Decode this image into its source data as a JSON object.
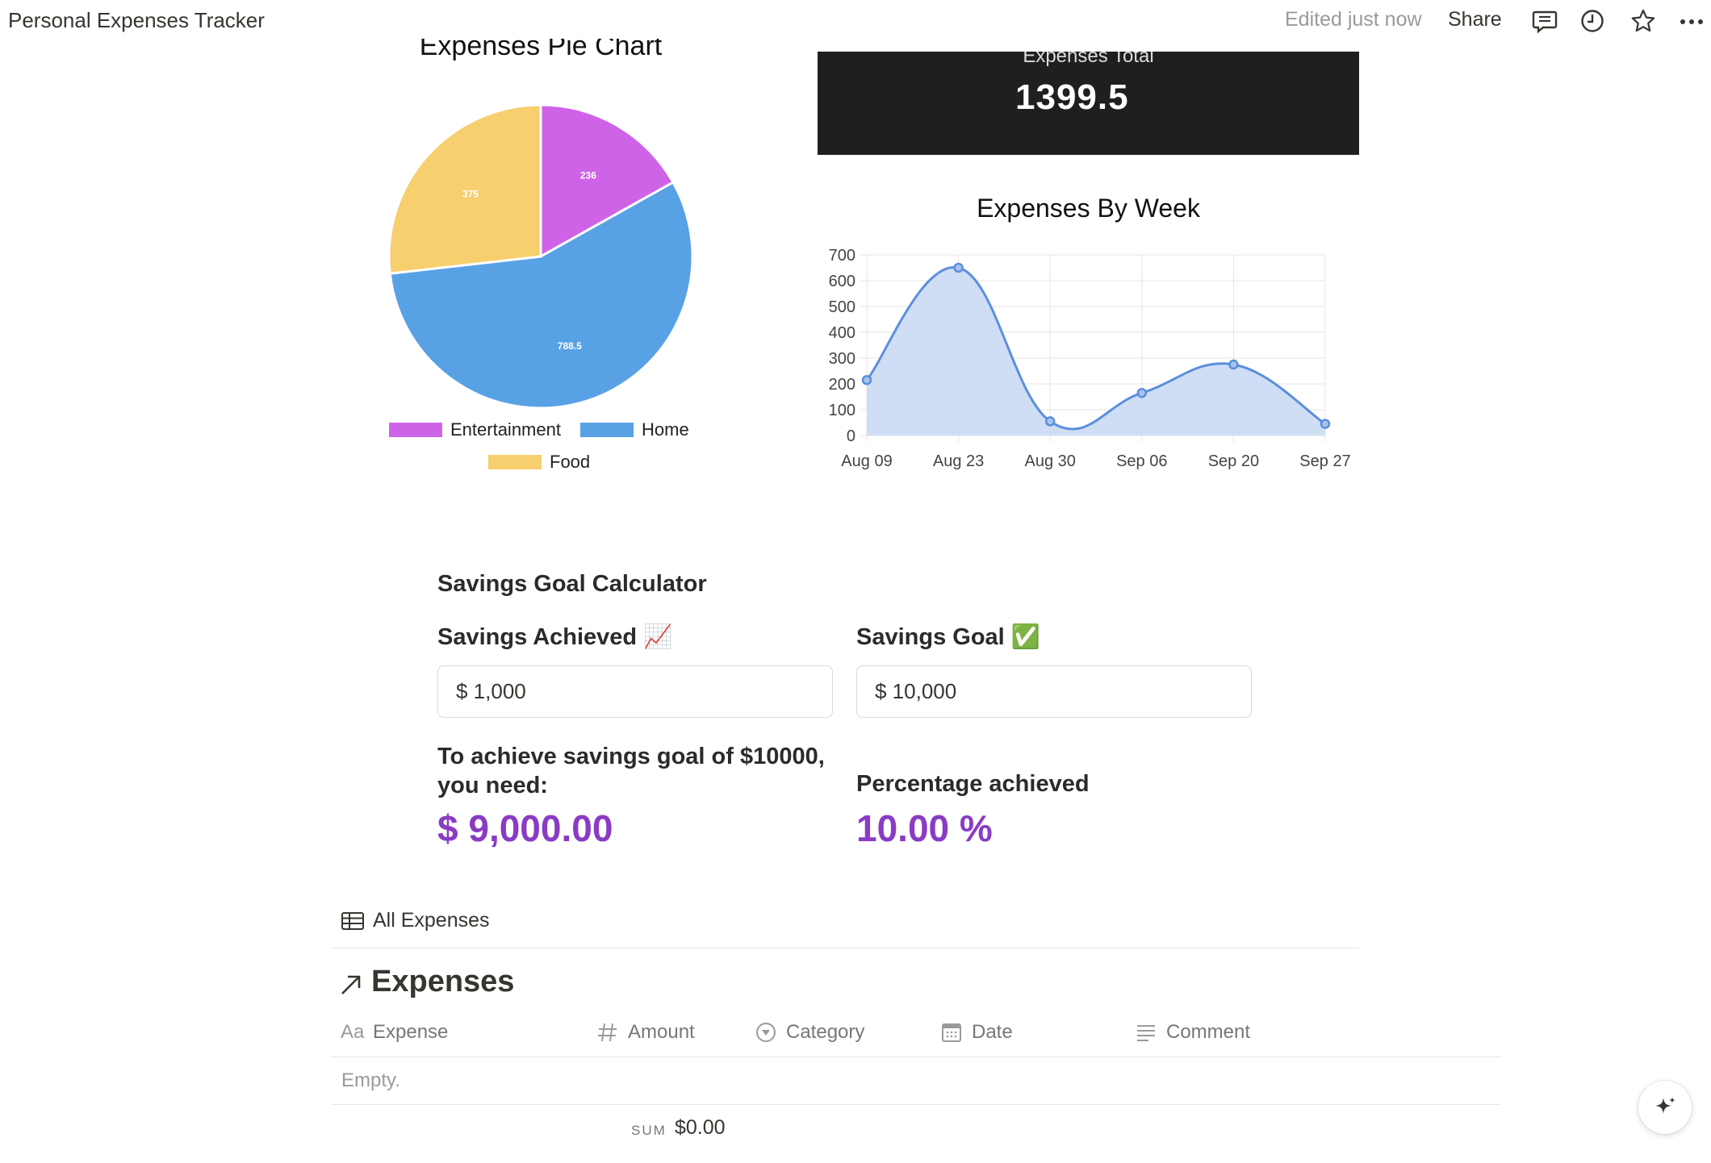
{
  "topbar": {
    "title": "Personal Expenses Tracker",
    "edited": "Edited just now",
    "share_label": "Share",
    "icons": [
      "comment-icon",
      "history-icon",
      "star-icon",
      "more-icon"
    ]
  },
  "pie": {
    "title": "Expenses Pie Chart",
    "legend": [
      {
        "label": "Entertainment",
        "color": "#cf63e8"
      },
      {
        "label": "Home",
        "color": "#58a1e5"
      },
      {
        "label": "Food",
        "color": "#f7cf6e"
      }
    ]
  },
  "total": {
    "label": "Expenses Total",
    "value": "1399.5"
  },
  "chart_data": [
    {
      "type": "pie",
      "title": "Expenses Pie Chart",
      "categories": [
        "Entertainment",
        "Home",
        "Food"
      ],
      "values": [
        236,
        788.5,
        375
      ],
      "labels": [
        "236",
        "788.5",
        "375"
      ],
      "colors": [
        "#cf63e8",
        "#58a1e5",
        "#f7cf6e"
      ],
      "legend": "bottom"
    },
    {
      "type": "area",
      "title": "Expenses By Week",
      "categories": [
        "Aug 09",
        "Aug 23",
        "Aug 30",
        "Sep 06",
        "Sep 20",
        "Sep 27"
      ],
      "values": [
        215,
        650,
        55,
        165,
        275,
        45
      ],
      "ylim": [
        0,
        700
      ],
      "yticks": [
        "0",
        "100",
        "200",
        "300",
        "400",
        "500",
        "600",
        "700"
      ],
      "grid": true,
      "line_color": "#5b8fdc",
      "fill_color": "#ccdcf4"
    }
  ],
  "line": {
    "title": "Expenses By Week"
  },
  "savings": {
    "heading": "Savings Goal Calculator",
    "achieved_label": "Savings Achieved 📈",
    "achieved_value": "$  1,000",
    "goal_label": "Savings Goal ✅",
    "goal_value": "$  10,000",
    "need_label": "To achieve savings goal of $10000, you need:",
    "need_value": "$ 9,000.00",
    "pct_label": "Percentage achieved",
    "pct_value": "10.00 %",
    "accent": "#8a3bc3"
  },
  "database": {
    "view_tab": "All Expenses",
    "title": "Expenses",
    "columns": [
      {
        "label": "Expense",
        "icon": "title-icon"
      },
      {
        "label": "Amount",
        "icon": "number-icon"
      },
      {
        "label": "Category",
        "icon": "select-icon"
      },
      {
        "label": "Date",
        "icon": "calendar-icon"
      },
      {
        "label": "Comment",
        "icon": "text-icon"
      }
    ],
    "empty_text": "Empty.",
    "sum_label": "SUM",
    "sum_value": "$0.00",
    "title_prefix": "Aa"
  }
}
